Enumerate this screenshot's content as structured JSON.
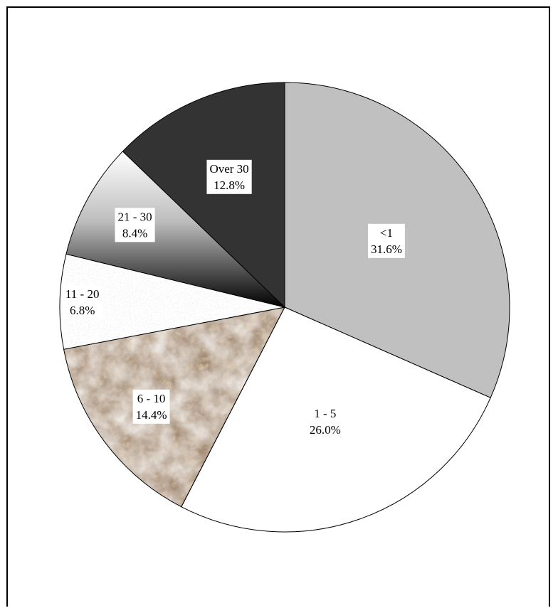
{
  "chart_data": {
    "type": "pie",
    "title": "",
    "start_angle_deg": 0,
    "direction": "clockwise",
    "legend": "none",
    "slices": [
      {
        "label": "<1",
        "value": 31.6,
        "value_label": "31.6%",
        "color": "#c0c0c0",
        "fill": "solid-gray"
      },
      {
        "label": "1 - 5",
        "value": 26.0,
        "value_label": "26.0%",
        "color": "#ffffff",
        "fill": "solid-white"
      },
      {
        "label": "6 - 10",
        "value": 14.4,
        "value_label": "14.4%",
        "color": "#5a3a22",
        "fill": "brown-marble-texture"
      },
      {
        "label": "11 - 20",
        "value": 6.8,
        "value_label": "6.8%",
        "color": "#e6e6e6",
        "fill": "white-granite-texture"
      },
      {
        "label": "21 - 30",
        "value": 8.4,
        "value_label": "8.4%",
        "color": "#707070",
        "fill": "white-to-black-gradient"
      },
      {
        "label": "Over 30",
        "value": 12.8,
        "value_label": "12.8%",
        "color": "#333333",
        "fill": "solid-dark-gray"
      }
    ]
  }
}
